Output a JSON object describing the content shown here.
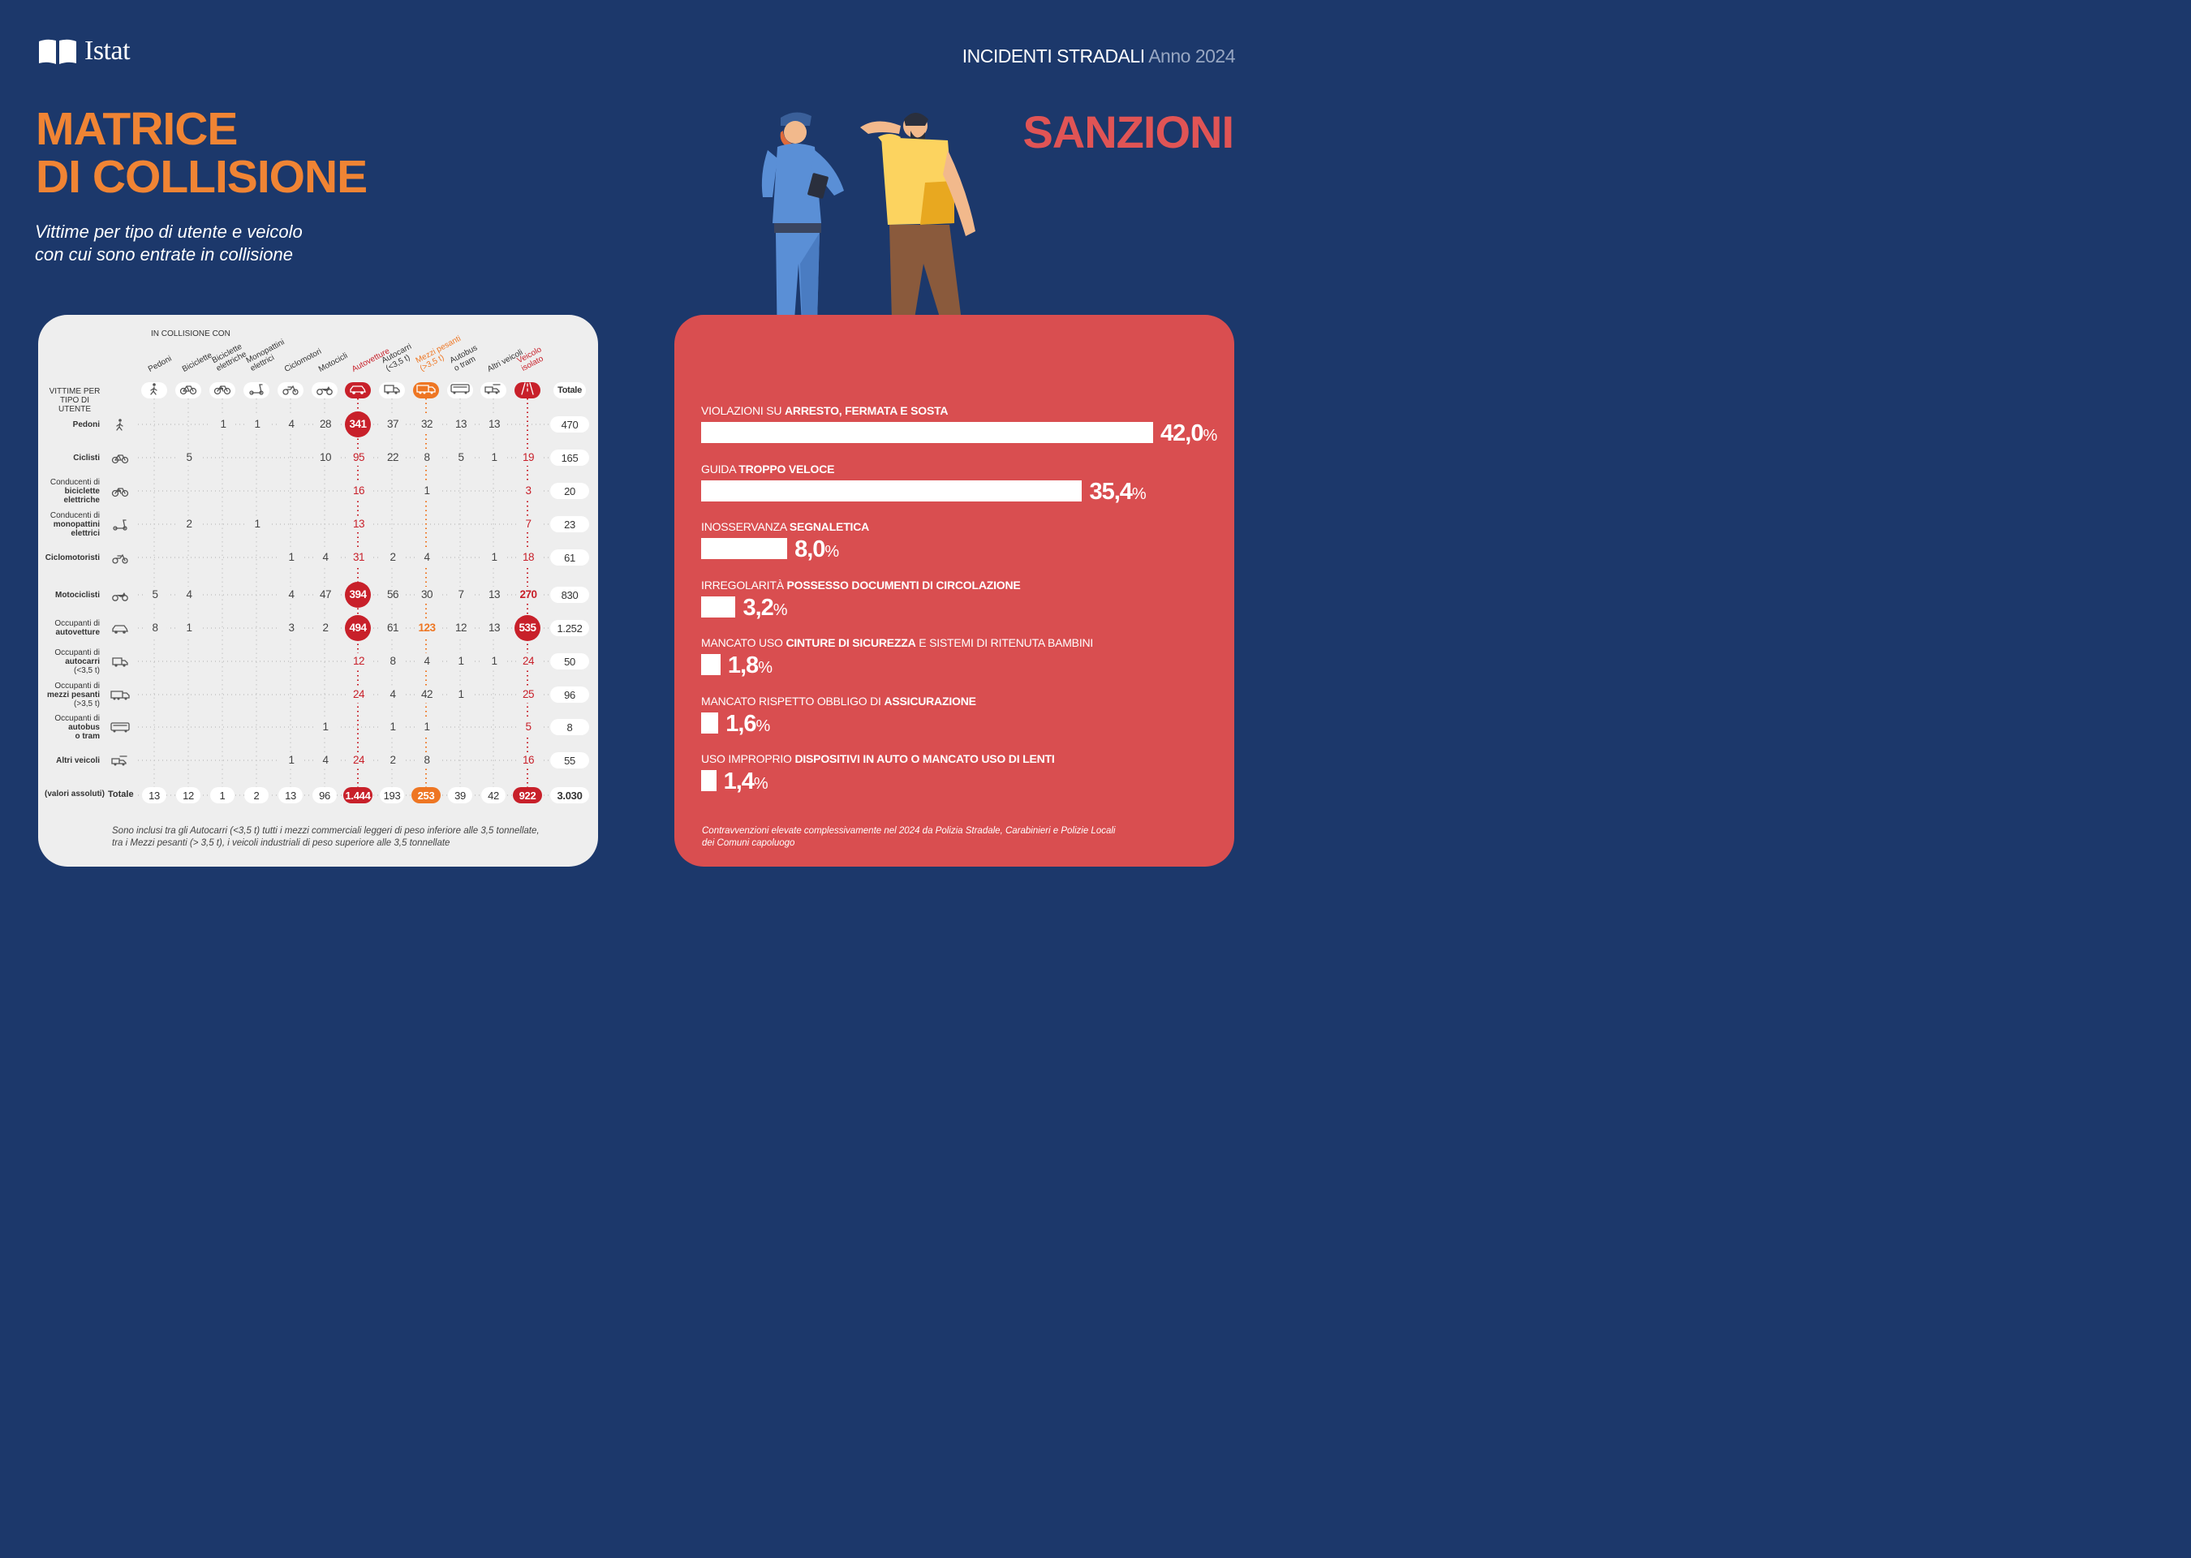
{
  "brand": {
    "name": "Istat"
  },
  "header": {
    "topic": "INCIDENTI STRADALI",
    "year": "Anno 2024"
  },
  "left": {
    "title_line1": "MATRICE",
    "title_line2": "DI COLLISIONE",
    "subtitle_line1": "Vittime per tipo di utente e veicolo",
    "subtitle_line2": "con cui sono entrate in collisione",
    "in_collisione": "IN COLLISIONE CON",
    "vittime_line1": "VITTIME PER",
    "vittime_line2": "TIPO DI UTENTE",
    "columns": [
      {
        "l1": "Pedoni",
        "l2": "",
        "l3": "",
        "color": "#333333",
        "icon": "pedestrian-icon"
      },
      {
        "l1": "Biciclette",
        "l2": "",
        "l3": "",
        "color": "#333333",
        "icon": "bicycle-icon"
      },
      {
        "l1": "Biciclette",
        "l2": "elettriche",
        "l3": "",
        "color": "#333333",
        "icon": "ebike-icon"
      },
      {
        "l1": "Monopattini",
        "l2": "elettrici",
        "l3": "",
        "color": "#333333",
        "icon": "scooter-icon"
      },
      {
        "l1": "Ciclomotori",
        "l2": "",
        "l3": "",
        "color": "#333333",
        "icon": "moped-icon"
      },
      {
        "l1": "Motocicli",
        "l2": "",
        "l3": "",
        "color": "#333333",
        "icon": "motorcycle-icon"
      },
      {
        "l1": "Autovetture",
        "l2": "",
        "l3": "",
        "color": "#c8202a",
        "icon": "car-icon"
      },
      {
        "l1": "Autocarri",
        "l2": "(<3,5 t)",
        "l3": "",
        "color": "#333333",
        "icon": "van-icon"
      },
      {
        "l1": "Mezzi pesanti",
        "l2": "(>3,5 t)",
        "l3": "",
        "color": "#ee7623",
        "icon": "truck-icon"
      },
      {
        "l1": "Autobus",
        "l2": "o tram",
        "l3": "",
        "color": "#333333",
        "icon": "bus-icon"
      },
      {
        "l1": "Altri veicoli",
        "l2": "",
        "l3": "",
        "color": "#333333",
        "icon": "other-vehicle-icon"
      },
      {
        "l1": "Veicolo",
        "l2": "isolato",
        "l3": "",
        "color": "#c8202a",
        "icon": "road-icon"
      }
    ],
    "total_header": "Totale",
    "rows": [
      {
        "l1": "Pedoni",
        "l2": "",
        "l3": "",
        "icon": "pedestrian-icon",
        "cells": [
          "",
          "",
          "1",
          "1",
          "4",
          "28",
          "341",
          "37",
          "32",
          "13",
          "13",
          ""
        ],
        "total": "470"
      },
      {
        "l1": "Ciclisti",
        "l2": "",
        "l3": "",
        "icon": "bicycle-icon",
        "cells": [
          "",
          "5",
          "",
          "",
          "",
          "10",
          "95",
          "22",
          "8",
          "5",
          "1",
          "19"
        ],
        "total": "165"
      },
      {
        "l1": "Conducenti di",
        "l2": "biciclette",
        "l3": "elettriche",
        "icon": "ebike-icon",
        "cells": [
          "",
          "",
          "",
          "",
          "",
          "",
          "16",
          "",
          "1",
          "",
          "",
          "3"
        ],
        "total": "20"
      },
      {
        "l1": "Conducenti di",
        "l2": "monopattini",
        "l3": "elettrici",
        "icon": "scooter-icon",
        "cells": [
          "",
          "2",
          "",
          "1",
          "",
          "",
          "13",
          "",
          "",
          "",
          "",
          "7"
        ],
        "total": "23"
      },
      {
        "l1": "Ciclomotoristi",
        "l2": "",
        "l3": "",
        "icon": "moped-icon",
        "cells": [
          "",
          "",
          "",
          "",
          "1",
          "4",
          "31",
          "2",
          "4",
          "",
          "1",
          "18"
        ],
        "total": "61"
      },
      {
        "l1": "Motociclisti",
        "l2": "",
        "l3": "",
        "icon": "motorcycle-icon",
        "cells": [
          "5",
          "4",
          "",
          "",
          "4",
          "47",
          "394",
          "56",
          "30",
          "7",
          "13",
          "270"
        ],
        "total": "830"
      },
      {
        "l1": "Occupanti di",
        "l2": "autovetture",
        "l3": "",
        "icon": "car-icon",
        "cells": [
          "8",
          "1",
          "",
          "",
          "3",
          "2",
          "494",
          "61",
          "123",
          "12",
          "13",
          "535"
        ],
        "total": "1.252"
      },
      {
        "l1": "Occupanti di",
        "l2": "autocarri",
        "l3": "(<3,5 t)",
        "icon": "van-icon",
        "cells": [
          "",
          "",
          "",
          "",
          "",
          "",
          "12",
          "8",
          "4",
          "1",
          "1",
          "24"
        ],
        "total": "50"
      },
      {
        "l1": "Occupanti di",
        "l2": "mezzi pesanti",
        "l3": "(>3,5 t)",
        "icon": "truck-icon",
        "cells": [
          "",
          "",
          "",
          "",
          "",
          "",
          "24",
          "4",
          "42",
          "1",
          "",
          "25"
        ],
        "total": "96"
      },
      {
        "l1": "Occupanti di",
        "l2": "autobus",
        "l3": "o tram",
        "icon": "bus-icon",
        "cells": [
          "",
          "",
          "",
          "",
          "",
          "1",
          "",
          "1",
          "1",
          "",
          "",
          "5"
        ],
        "total": "8"
      },
      {
        "l1": "Altri veicoli",
        "l2": "",
        "l3": "",
        "icon": "other-vehicle-icon",
        "cells": [
          "",
          "",
          "",
          "",
          "1",
          "4",
          "24",
          "2",
          "8",
          "",
          "",
          "16"
        ],
        "total": "55"
      }
    ],
    "highlight_red": [
      "341",
      "394",
      "494",
      "535"
    ],
    "totals_row": {
      "prefix": "(valori assoluti)",
      "label": "Totale",
      "cells": [
        "13",
        "12",
        "1",
        "2",
        "13",
        "96",
        "1.444",
        "193",
        "253",
        "39",
        "42",
        "922"
      ],
      "total": "3.030"
    },
    "note_line1": "Sono inclusi tra gli Autocarri (<3,5 t) tutti i mezzi commerciali leggeri di peso inferiore alle 3,5 tonnellate,",
    "note_line2": "tra i Mezzi pesanti (> 3,5 t), i veicoli industriali di peso superiore alle 3,5 tonnellate"
  },
  "right": {
    "title": "SANZIONI",
    "bars": [
      {
        "pre": "VIOLAZIONI SU ",
        "bold": "ARRESTO, FERMATA E SOSTA",
        "post": "",
        "value": 42.0,
        "num": "42,0",
        "unit": "%"
      },
      {
        "pre": "GUIDA ",
        "bold": "TROPPO VELOCE",
        "post": "",
        "value": 35.4,
        "num": "35,4",
        "unit": "%"
      },
      {
        "pre": "INOSSERVANZA ",
        "bold": "SEGNALETICA",
        "post": "",
        "value": 8.0,
        "num": "8,0",
        "unit": "%"
      },
      {
        "pre": "IRREGOLARITÀ ",
        "bold": "POSSESSO DOCUMENTI DI CIRCOLAZIONE",
        "post": "",
        "value": 3.2,
        "num": "3,2",
        "unit": "%"
      },
      {
        "pre": "MANCATO USO ",
        "bold": "CINTURE DI SICUREZZA",
        "post": " E SISTEMI DI RITENUTA BAMBINI",
        "value": 1.8,
        "num": "1,8",
        "unit": "%"
      },
      {
        "pre": "MANCATO RISPETTO OBBLIGO DI ",
        "bold": "ASSICURAZIONE",
        "post": "",
        "value": 1.6,
        "num": "1,6",
        "unit": "%"
      },
      {
        "pre": "USO IMPROPRIO ",
        "bold": "DISPOSITIVI IN AUTO O MANCATO USO DI LENTI",
        "post": "",
        "value": 1.4,
        "num": "1,4",
        "unit": "%"
      }
    ],
    "note_line1": "Contravvenzioni elevate complessivamente nel 2024 da Polizia Stradale, Carabinieri e Polizie Locali",
    "note_line2": "dei Comuni capoluogo"
  },
  "colors": {
    "background": "#1c386b",
    "orange": "#f08434",
    "red": "#c8202a",
    "panel_red": "#d94e50",
    "panel_grey": "#eeeeee"
  }
}
